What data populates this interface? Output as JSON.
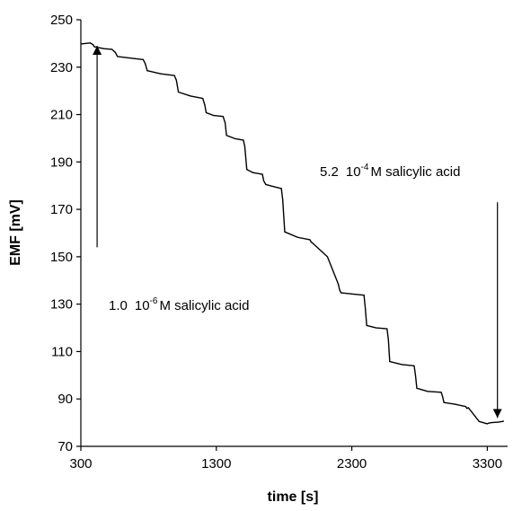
{
  "chart_data": {
    "type": "line",
    "xlabel": "time [s]",
    "ylabel": "EMF [mV]",
    "xlim": [
      300,
      3450
    ],
    "ylim": [
      70,
      250
    ],
    "xticks": [
      "300",
      "1300",
      "2300",
      "3300"
    ],
    "yticks": [
      "70",
      "90",
      "110",
      "130",
      "150",
      "170",
      "190",
      "210",
      "230",
      "250"
    ],
    "grid": false,
    "legend": "none",
    "series": [
      {
        "color": "#000000",
        "x": [
          300,
          370,
          390,
          400,
          470,
          530,
          555,
          570,
          700,
          760,
          775,
          790,
          890,
          990,
          1005,
          1020,
          1110,
          1200,
          1215,
          1225,
          1280,
          1350,
          1365,
          1375,
          1440,
          1500,
          1510,
          1525,
          1570,
          1640,
          1650,
          1665,
          1730,
          1780,
          1790,
          1805,
          1900,
          1990,
          2000,
          2010,
          2120,
          2200,
          2210,
          2220,
          2300,
          2390,
          2400,
          2410,
          2480,
          2560,
          2570,
          2580,
          2670,
          2760,
          2770,
          2780,
          2860,
          2960,
          2970,
          2980,
          3060,
          3140,
          3150,
          3160,
          3240,
          3300,
          3310,
          3330,
          3380,
          3420
        ],
        "y": [
          239.8,
          240.2,
          239.5,
          238.6,
          237.8,
          237.5,
          236.2,
          234.5,
          233.6,
          233.2,
          231.5,
          228.5,
          227.2,
          226.5,
          224.5,
          219.5,
          217.8,
          216.8,
          214.0,
          210.8,
          209.6,
          209.2,
          206.5,
          201.2,
          199.8,
          199.2,
          196.5,
          186.8,
          185.5,
          184.8,
          182.0,
          180.5,
          179.5,
          178.8,
          174.0,
          160.5,
          158.2,
          157.2,
          156.2,
          155.8,
          150.0,
          138.5,
          136.0,
          134.8,
          134.3,
          133.8,
          128.0,
          121.0,
          120.0,
          119.6,
          115.0,
          105.8,
          104.5,
          104.0,
          100.0,
          94.5,
          93.2,
          92.8,
          91.0,
          88.5,
          87.8,
          86.8,
          86.0,
          86.3,
          80.5,
          79.5,
          79.8,
          80.0,
          80.2,
          80.6
        ]
      }
    ],
    "annotations": [
      {
        "id": "annotation-start",
        "base": "1.0",
        "sup": "-6",
        "rest": "M salicylic acid",
        "arrow_from": [
          420,
          154
        ],
        "arrow_to": [
          420,
          239
        ]
      },
      {
        "id": "annotation-end",
        "base": "5.2",
        "sup": "-4",
        "rest": "M salicylic acid",
        "arrow_from": [
          3375,
          173
        ],
        "arrow_to": [
          3375,
          82
        ]
      }
    ]
  }
}
